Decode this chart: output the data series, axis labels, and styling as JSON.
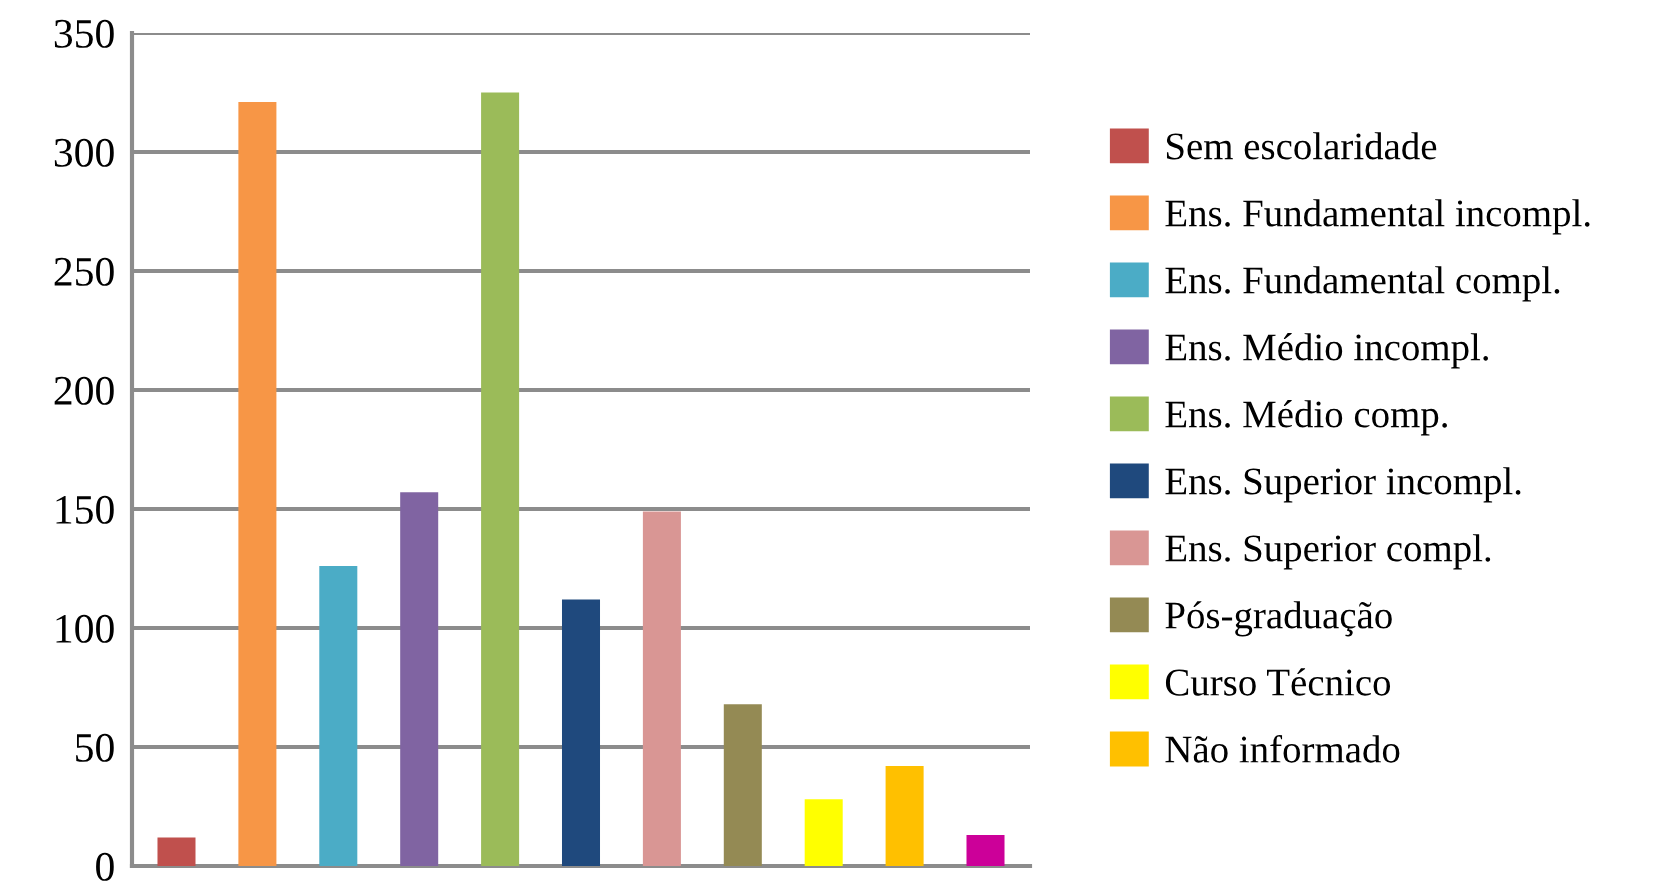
{
  "chart_data": {
    "type": "bar",
    "categories": [
      null,
      null,
      null,
      null,
      null,
      null,
      null,
      null,
      null,
      null,
      null
    ],
    "series": [
      {
        "name": "Sem escolaridade",
        "color": "#c0504d",
        "values": [
          12,
          null,
          null,
          null,
          null,
          null,
          null,
          null,
          null,
          null,
          null
        ]
      },
      {
        "name": "Ens. Fundamental incompl.",
        "color": "#f79646",
        "values": [
          null,
          321,
          null,
          null,
          null,
          null,
          null,
          null,
          null,
          null,
          null
        ]
      },
      {
        "name": "Ens. Fundamental compl.",
        "color": "#4bacc6",
        "values": [
          null,
          null,
          126,
          null,
          null,
          null,
          null,
          null,
          null,
          null,
          null
        ]
      },
      {
        "name": "Ens. Médio incompl.",
        "color": "#8064a2",
        "values": [
          null,
          null,
          null,
          157,
          null,
          null,
          null,
          null,
          null,
          null,
          null
        ]
      },
      {
        "name": "Ens. Médio comp.",
        "color": "#9bbb59",
        "values": [
          null,
          null,
          null,
          null,
          325,
          null,
          null,
          null,
          null,
          null,
          null
        ]
      },
      {
        "name": "Ens. Superior incompl.",
        "color": "#1f497d",
        "values": [
          null,
          null,
          null,
          null,
          null,
          112,
          null,
          null,
          null,
          null,
          null
        ]
      },
      {
        "name": "Ens. Superior compl.",
        "color": "#d99694",
        "values": [
          null,
          null,
          null,
          null,
          null,
          null,
          149,
          null,
          null,
          null,
          null
        ]
      },
      {
        "name": "Pós-graduação",
        "color": "#948a54",
        "values": [
          null,
          null,
          null,
          null,
          null,
          null,
          null,
          68,
          null,
          null,
          null
        ]
      },
      {
        "name": "Curso Técnico",
        "color": "#ffff00",
        "values": [
          null,
          null,
          null,
          null,
          null,
          null,
          null,
          null,
          28,
          null,
          null
        ]
      },
      {
        "name": "Não informado",
        "color": "#ffc000",
        "values": [
          null,
          null,
          null,
          null,
          null,
          null,
          null,
          null,
          null,
          42,
          null
        ]
      },
      {
        "color": "#cc0099",
        "values": [
          null,
          null,
          null,
          null,
          null,
          null,
          null,
          null,
          null,
          null,
          13
        ]
      }
    ],
    "ylim": [
      0,
      350
    ],
    "yticks": [
      0,
      50,
      100,
      150,
      200,
      250,
      300,
      350
    ],
    "grid": "y",
    "legend": "right",
    "tick_labels": "y"
  }
}
